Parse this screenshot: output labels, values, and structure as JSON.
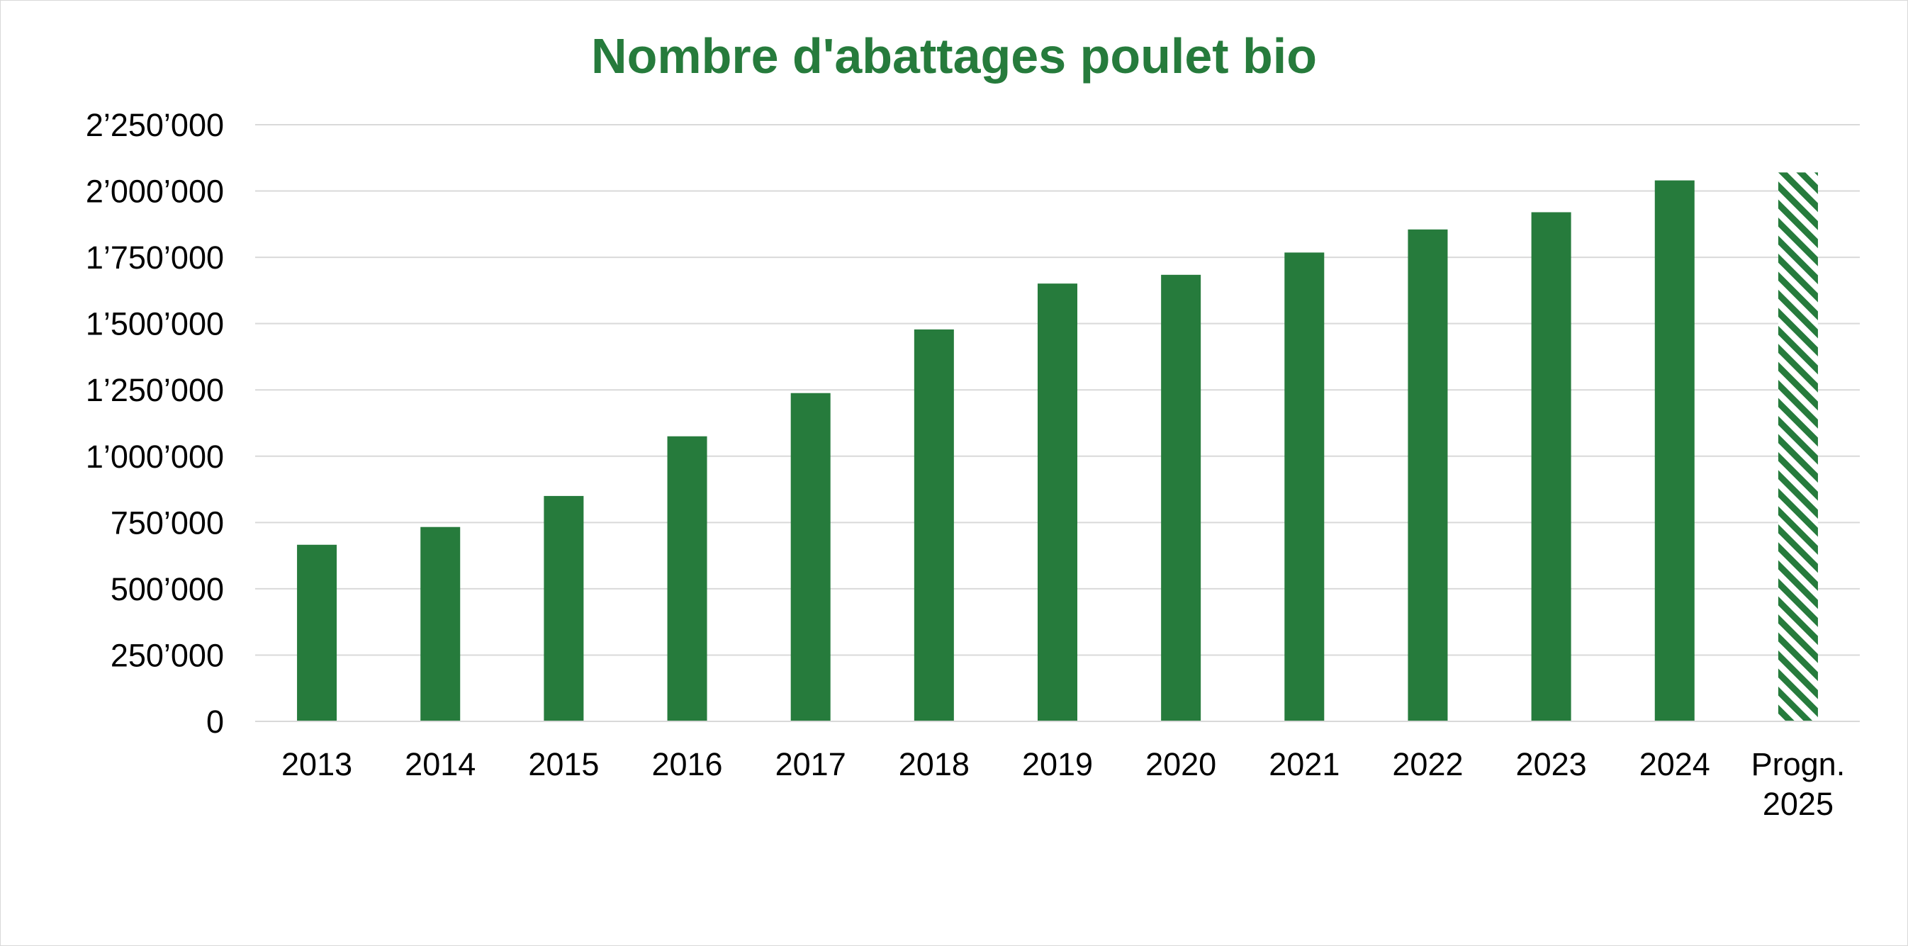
{
  "chart_data": {
    "type": "bar",
    "title": "Nombre d'abattages poulet bio",
    "xlabel": "",
    "ylabel": "",
    "categories": [
      "2013",
      "2014",
      "2015",
      "2016",
      "2017",
      "2018",
      "2019",
      "2020",
      "2021",
      "2022",
      "2023",
      "2024",
      "Progn. 2025"
    ],
    "category_lines": [
      [
        "2013"
      ],
      [
        "2014"
      ],
      [
        "2015"
      ],
      [
        "2016"
      ],
      [
        "2017"
      ],
      [
        "2018"
      ],
      [
        "2019"
      ],
      [
        "2020"
      ],
      [
        "2021"
      ],
      [
        "2022"
      ],
      [
        "2023"
      ],
      [
        "2024"
      ],
      [
        "Progn.",
        "2025"
      ]
    ],
    "values": [
      666000,
      733000,
      850000,
      1075000,
      1238000,
      1478000,
      1651000,
      1684000,
      1768000,
      1855000,
      1920000,
      2040000,
      2070000
    ],
    "forecast_index": 12,
    "ylim": [
      0,
      2250000
    ],
    "yticks": [
      0,
      250000,
      500000,
      750000,
      1000000,
      1250000,
      1500000,
      1750000,
      2000000,
      2250000
    ],
    "ytick_labels": [
      "0",
      "250’000",
      "500’000",
      "750’000",
      "1’000’000",
      "1’250’000",
      "1’500’000",
      "1’750’000",
      "2’000’000",
      "2’250’000"
    ],
    "grid": true,
    "legend": "none",
    "colors": {
      "bar": "#267B3C",
      "title": "#267B3C",
      "gridline": "#d9d9d9",
      "forecast_hatch": "#267B3C"
    }
  }
}
